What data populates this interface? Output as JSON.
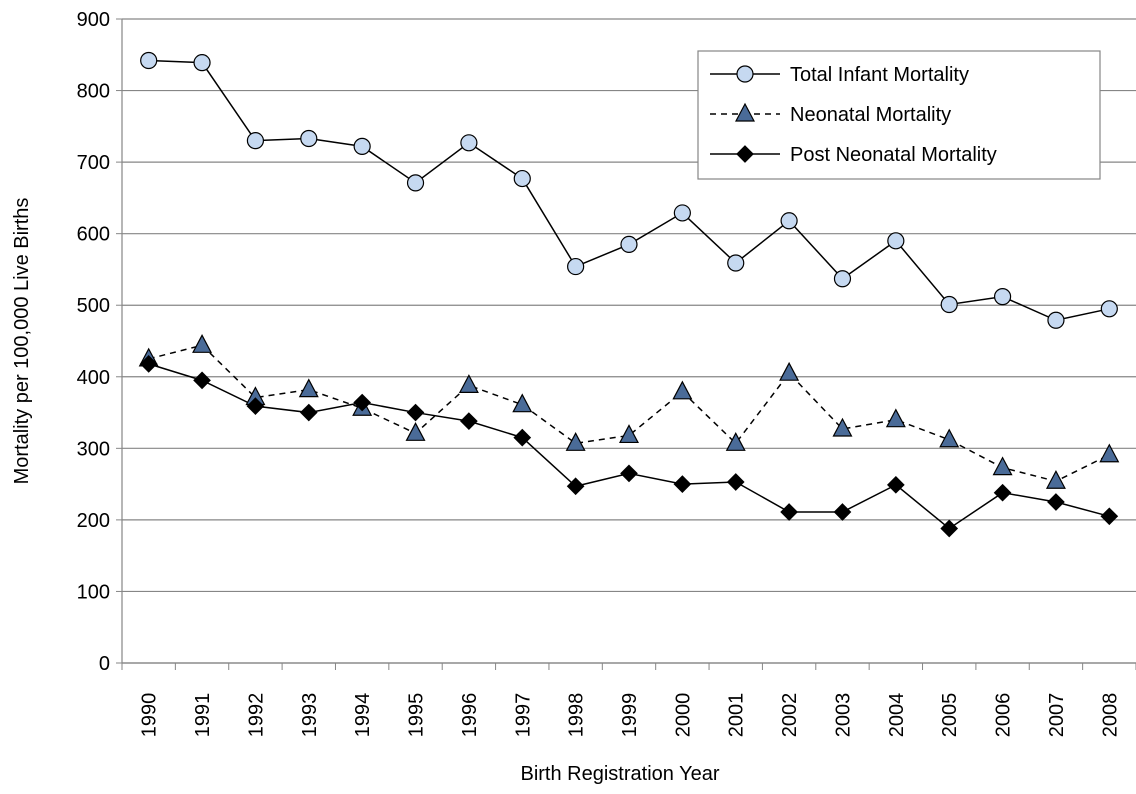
{
  "chart_data": {
    "type": "line",
    "xlabel": "Birth Registration Year",
    "ylabel": "Mortality per 100,000 Live Births",
    "categories": [
      "1990",
      "1991",
      "1992",
      "1993",
      "1994",
      "1995",
      "1996",
      "1997",
      "1998",
      "1999",
      "2000",
      "2001",
      "2002",
      "2003",
      "2004",
      "2005",
      "2006",
      "2007",
      "2008"
    ],
    "series": [
      {
        "name": "Total Infant Mortality",
        "color": "#c6d9f1",
        "line_color": "#000000",
        "marker": "circle",
        "linestyle": "solid",
        "values": [
          842,
          839,
          730,
          733,
          722,
          671,
          727,
          677,
          554,
          585,
          629,
          559,
          618,
          537,
          590,
          501,
          512,
          479,
          495
        ]
      },
      {
        "name": "Neonatal Mortality",
        "color": "#4a6b98",
        "line_color": "#000000",
        "marker": "triangle",
        "linestyle": "dashed",
        "values": [
          425,
          444,
          371,
          382,
          356,
          321,
          388,
          361,
          307,
          318,
          379,
          307,
          405,
          327,
          340,
          312,
          273,
          254,
          291
        ]
      },
      {
        "name": "Post Neonatal Mortality",
        "color": "#000000",
        "line_color": "#000000",
        "marker": "diamond",
        "linestyle": "solid",
        "values": [
          418,
          395,
          359,
          350,
          364,
          350,
          338,
          315,
          247,
          265,
          250,
          253,
          211,
          211,
          249,
          188,
          238,
          225,
          205
        ]
      }
    ],
    "ylim": [
      0,
      900
    ],
    "yticks": [
      0,
      100,
      200,
      300,
      400,
      500,
      600,
      700,
      800,
      900
    ],
    "grid": true,
    "legend": "upper right"
  }
}
